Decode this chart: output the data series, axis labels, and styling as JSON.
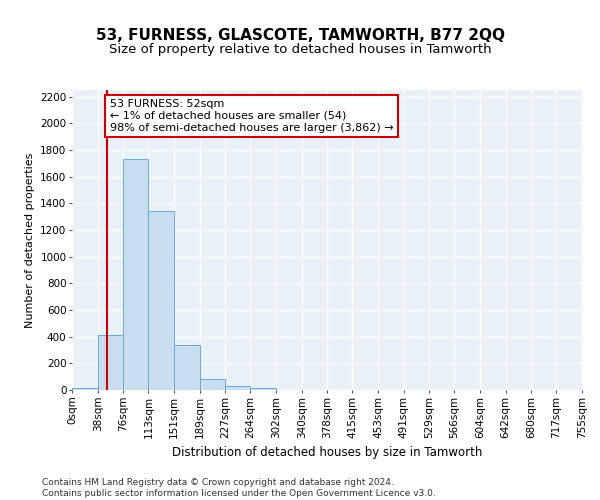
{
  "title": "53, FURNESS, GLASCOTE, TAMWORTH, B77 2QQ",
  "subtitle": "Size of property relative to detached houses in Tamworth",
  "xlabel": "Distribution of detached houses by size in Tamworth",
  "ylabel": "Number of detached properties",
  "bar_color": "#c8ddf0",
  "bar_edgecolor": "#6aaad4",
  "background_color": "#e8f0f8",
  "grid_color": "#ffffff",
  "redline_x": 52,
  "annotation_text": "53 FURNESS: 52sqm\n← 1% of detached houses are smaller (54)\n98% of semi-detached houses are larger (3,862) →",
  "annotation_box_color": "#ffffff",
  "annotation_box_edgecolor": "#cc0000",
  "bin_edges": [
    0,
    38,
    76,
    113,
    151,
    189,
    227,
    264,
    302,
    340,
    378,
    415,
    453,
    491,
    529,
    566,
    604,
    642,
    680,
    717,
    755
  ],
  "bar_heights": [
    15,
    415,
    1730,
    1345,
    340,
    80,
    32,
    18,
    0,
    0,
    0,
    0,
    0,
    0,
    0,
    0,
    0,
    0,
    0,
    0
  ],
  "ylim": [
    0,
    2250
  ],
  "yticks": [
    0,
    200,
    400,
    600,
    800,
    1000,
    1200,
    1400,
    1600,
    1800,
    2000,
    2200
  ],
  "footer_text": "Contains HM Land Registry data © Crown copyright and database right 2024.\nContains public sector information licensed under the Open Government Licence v3.0.",
  "title_fontsize": 11,
  "subtitle_fontsize": 9.5,
  "xlabel_fontsize": 8.5,
  "ylabel_fontsize": 8,
  "tick_fontsize": 7.5,
  "annotation_fontsize": 8,
  "footer_fontsize": 6.5
}
